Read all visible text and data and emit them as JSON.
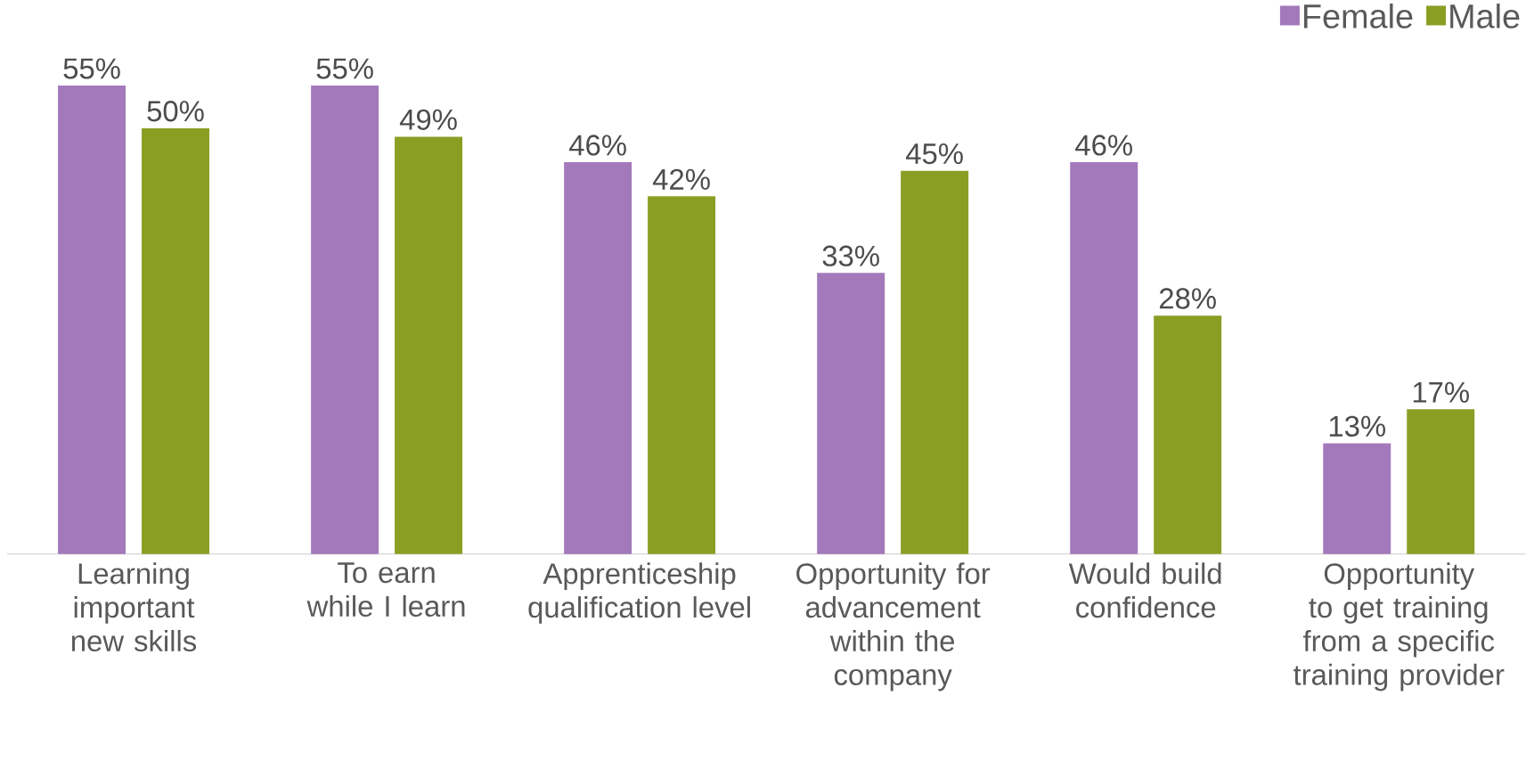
{
  "chart_data": {
    "type": "bar",
    "categories": [
      "Learning important new skills",
      "To earn while I learn",
      "Apprenticeship qualification level",
      "Opportunity for advancement within the company",
      "Would build confidence",
      "Opportunity to get training from a specific training provider"
    ],
    "series": [
      {
        "name": "Female",
        "color": "#a379bb",
        "values": [
          55,
          55,
          46,
          33,
          46,
          13
        ],
        "value_labels": [
          "55%",
          "55%",
          "46%",
          "33%",
          "46%",
          "13%"
        ]
      },
      {
        "name": "Male",
        "color": "#8b9e24",
        "values": [
          50,
          49,
          42,
          45,
          28,
          17
        ],
        "value_labels": [
          "50%",
          "49%",
          "42%",
          "45%",
          "28%",
          "17%"
        ]
      }
    ],
    "legend": "top right"
  }
}
